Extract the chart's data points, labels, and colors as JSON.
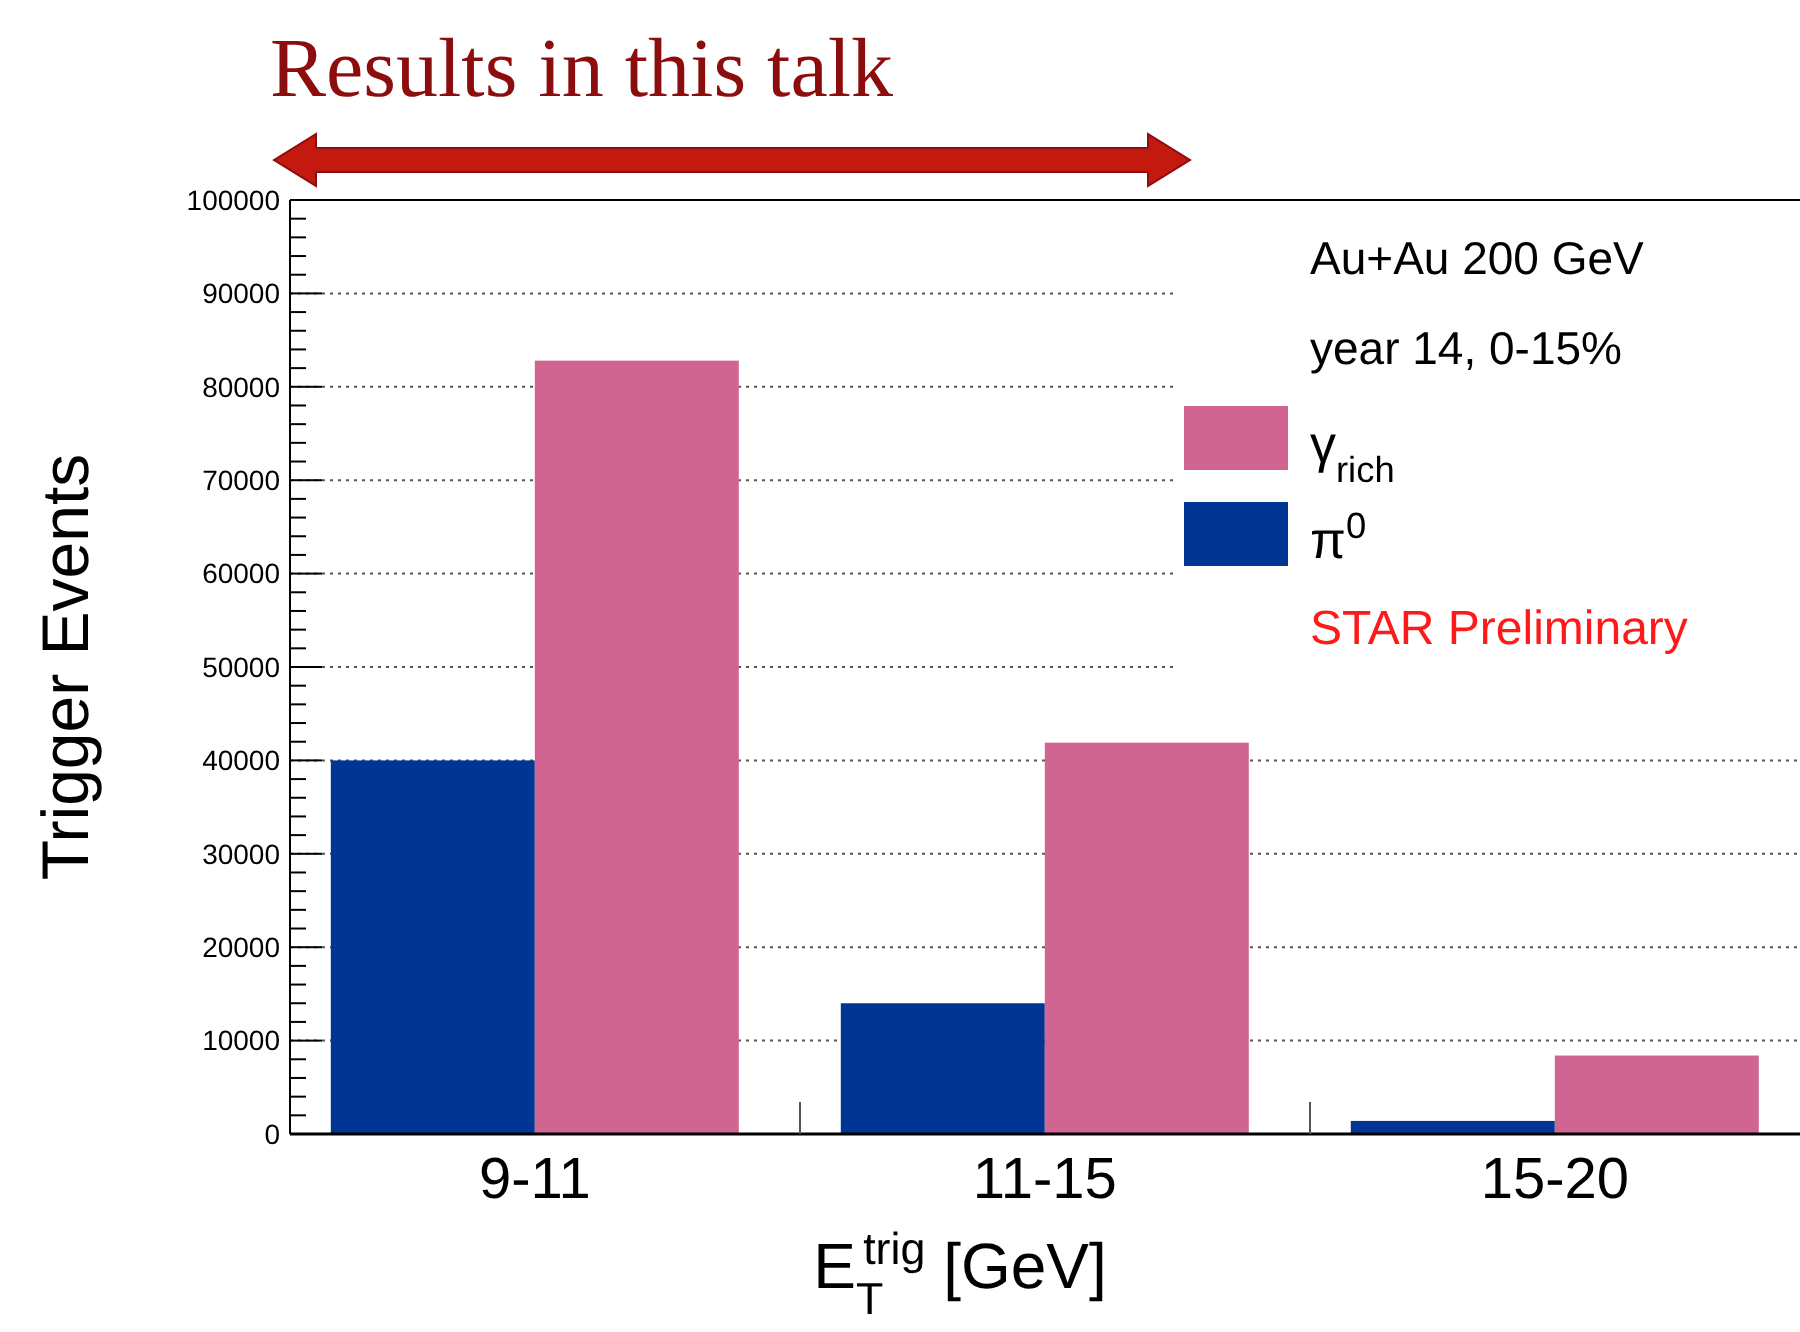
{
  "chart_data": {
    "type": "bar",
    "title": "Results in this talk",
    "xlabel": "E$_{T}$$^{trig}$ [GeV]",
    "ylabel": "Trigger Events",
    "categories": [
      "9-11",
      "11-15",
      "15-20"
    ],
    "series": [
      {
        "name": "π$^{0}$",
        "color": "#003594",
        "values": [
          40000,
          14000,
          1400
        ]
      },
      {
        "name": "γ$_{rich}$",
        "color": "#d06592",
        "values": [
          82800,
          41900,
          8400
        ]
      }
    ],
    "ylim": [
      0,
      100000
    ],
    "yticks": [
      0,
      10000,
      20000,
      30000,
      40000,
      50000,
      60000,
      70000,
      80000,
      90000,
      100000
    ],
    "grid": "y",
    "legend": "top right",
    "annotations": [
      "Au+Au 200 GeV",
      "year 14, 0-15%",
      "STAR Preliminary"
    ]
  }
}
